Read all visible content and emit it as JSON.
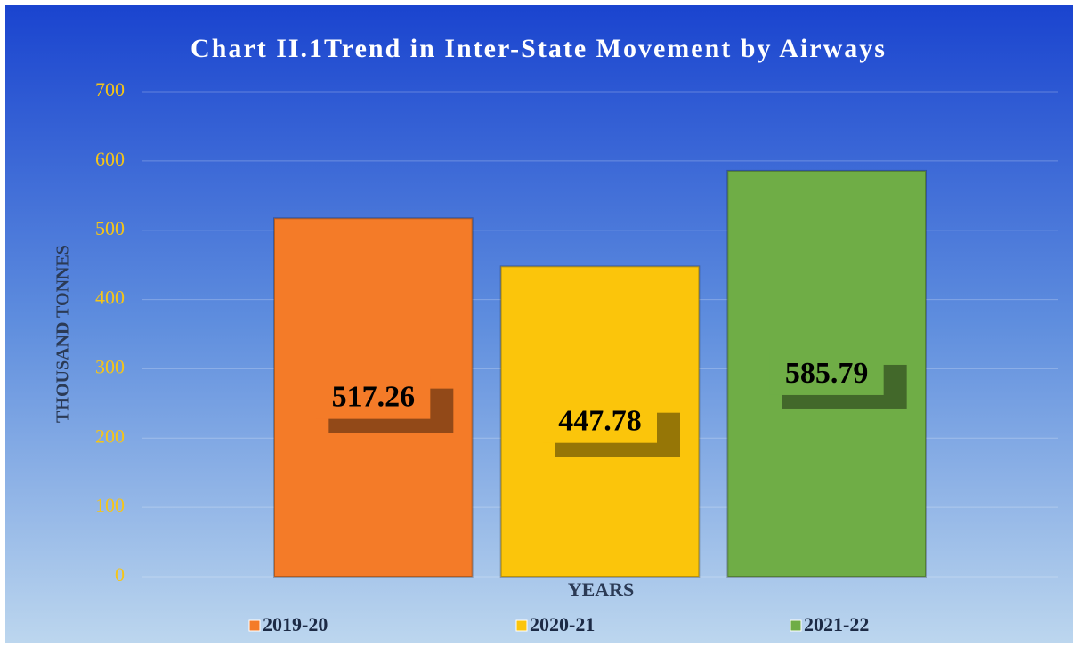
{
  "chart_data": {
    "type": "bar",
    "title": "Chart II.1Trend in Inter-State Movement by Airways",
    "x_label": "YEARS",
    "y_label": "THOUSAND TONNES",
    "categories": [
      null
    ],
    "series": [
      {
        "name": "2019-20",
        "color": "#f47b28",
        "values": [
          517.26
        ]
      },
      {
        "name": "2020-21",
        "color": "#fbc50b",
        "values": [
          447.78
        ]
      },
      {
        "name": "2021-22",
        "color": "#6fad46",
        "values": [
          585.79
        ]
      }
    ],
    "ylim": [
      0,
      700
    ],
    "yticks": [
      0,
      100,
      200,
      300,
      400,
      500,
      600,
      700
    ],
    "grid": true,
    "legend": "bottom",
    "data_labels": true
  }
}
